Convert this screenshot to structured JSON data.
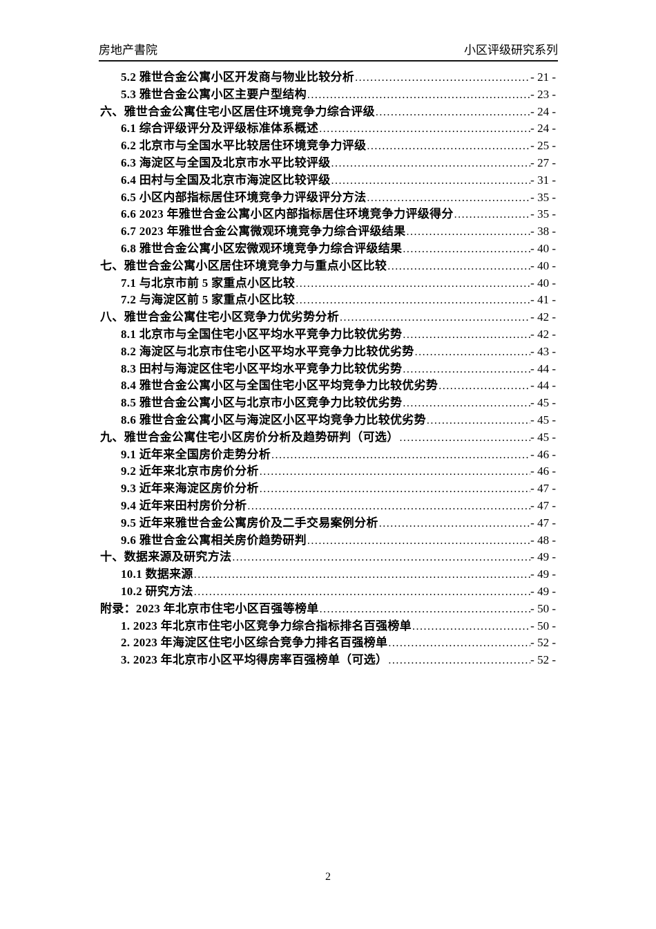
{
  "header": {
    "left": "房地产書院",
    "right": "小区评级研究系列"
  },
  "toc": {
    "entries": [
      {
        "level": 1,
        "label": "5.2 雅世合金公寓小区开发商与物业比较分析",
        "page": "- 21 -"
      },
      {
        "level": 1,
        "label": "5.3 雅世合金公寓小区主要户型结构",
        "page": "- 23 -"
      },
      {
        "level": 0,
        "label": "六、雅世合金公寓住宅小区居住环境竞争力综合评级",
        "page": "- 24 -"
      },
      {
        "level": 1,
        "label": "6.1 综合评级评分及评级标准体系概述",
        "page": "- 24 -"
      },
      {
        "level": 1,
        "label": "6.2 北京市与全国水平比较居住环境竞争力评级",
        "page": "- 25 -"
      },
      {
        "level": 1,
        "label": "6.3 海淀区与全国及北京市水平比较评级",
        "page": "- 27 -"
      },
      {
        "level": 1,
        "label": "6.4 田村与全国及北京市海淀区比较评级",
        "page": "- 31 -"
      },
      {
        "level": 1,
        "label": "6.5 小区内部指标居住环境竞争力评级评分方法",
        "page": "- 35 -"
      },
      {
        "level": 1,
        "label": "6.6 2023 年雅世合金公寓小区内部指标居住环境竞争力评级得分",
        "page": "- 35 -"
      },
      {
        "level": 1,
        "label": "6.7 2023 年雅世合金公寓微观环境竞争力综合评级结果",
        "page": "- 38 -"
      },
      {
        "level": 1,
        "label": "6.8 雅世合金公寓小区宏微观环境竞争力综合评级结果",
        "page": "- 40 -"
      },
      {
        "level": 0,
        "label": "七、雅世合金公寓小区居住环境竞争力与重点小区比较",
        "page": "- 40 -"
      },
      {
        "level": 1,
        "label": "7.1 与北京市前 5 家重点小区比较",
        "page": "- 40 -"
      },
      {
        "level": 1,
        "label": "7.2 与海淀区前 5 家重点小区比较",
        "page": "- 41 -"
      },
      {
        "level": 0,
        "label": "八、雅世合金公寓住宅小区竞争力优劣势分析",
        "page": "- 42 -"
      },
      {
        "level": 1,
        "label": "8.1 北京市与全国住宅小区平均水平竞争力比较优劣势",
        "page": "- 42 -"
      },
      {
        "level": 1,
        "label": "8.2 海淀区与北京市住宅小区平均水平竞争力比较优劣势",
        "page": "- 43 -"
      },
      {
        "level": 1,
        "label": "8.3 田村与海淀区住宅小区平均水平竞争力比较优劣势",
        "page": "- 44 -"
      },
      {
        "level": 1,
        "label": "8.4 雅世合金公寓小区与全国住宅小区平均竞争力比较优劣势",
        "page": "- 44 -"
      },
      {
        "level": 1,
        "label": "8.5 雅世合金公寓小区与北京市小区竞争力比较优劣势",
        "page": "- 45 -"
      },
      {
        "level": 1,
        "label": "8.6 雅世合金公寓小区与海淀区小区平均竞争力比较优劣势",
        "page": "- 45 -"
      },
      {
        "level": 0,
        "label": "九、雅世合金公寓住宅小区房价分析及趋势研判（可选）",
        "page": "- 45 -"
      },
      {
        "level": 1,
        "label": "9.1 近年来全国房价走势分析",
        "page": "- 46 -"
      },
      {
        "level": 1,
        "label": "9.2 近年来北京市房价分析",
        "page": "- 46 -"
      },
      {
        "level": 1,
        "label": "9.3 近年来海淀区房价分析",
        "page": "- 47 -"
      },
      {
        "level": 1,
        "label": "9.4 近年来田村房价分析",
        "page": "- 47 -"
      },
      {
        "level": 1,
        "label": "9.5 近年来雅世合金公寓房价及二手交易案例分析",
        "page": "- 47 -"
      },
      {
        "level": 1,
        "label": "9.6 雅世合金公寓相关房价趋势研判",
        "page": "- 48 -"
      },
      {
        "level": 0,
        "label": "十、数据来源及研究方法",
        "page": "- 49 -"
      },
      {
        "level": 1,
        "label": "10.1 数据来源",
        "page": "- 49 -"
      },
      {
        "level": 1,
        "label": "10.2 研究方法",
        "page": "- 49 -"
      },
      {
        "level": 0,
        "label": "附录：2023 年北京市住宅小区百强等榜单",
        "page": "- 50 -"
      },
      {
        "level": 1,
        "label": "1. 2023 年北京市住宅小区竞争力综合指标排名百强榜单",
        "page": "- 50 -"
      },
      {
        "level": 1,
        "label": "2. 2023 年海淀区住宅小区综合竞争力排名百强榜单",
        "page": "- 52 -"
      },
      {
        "level": 1,
        "label": "3. 2023 年北京市小区平均得房率百强榜单（可选）",
        "page": "- 52 -"
      }
    ]
  },
  "footer": {
    "page_number": "2"
  }
}
